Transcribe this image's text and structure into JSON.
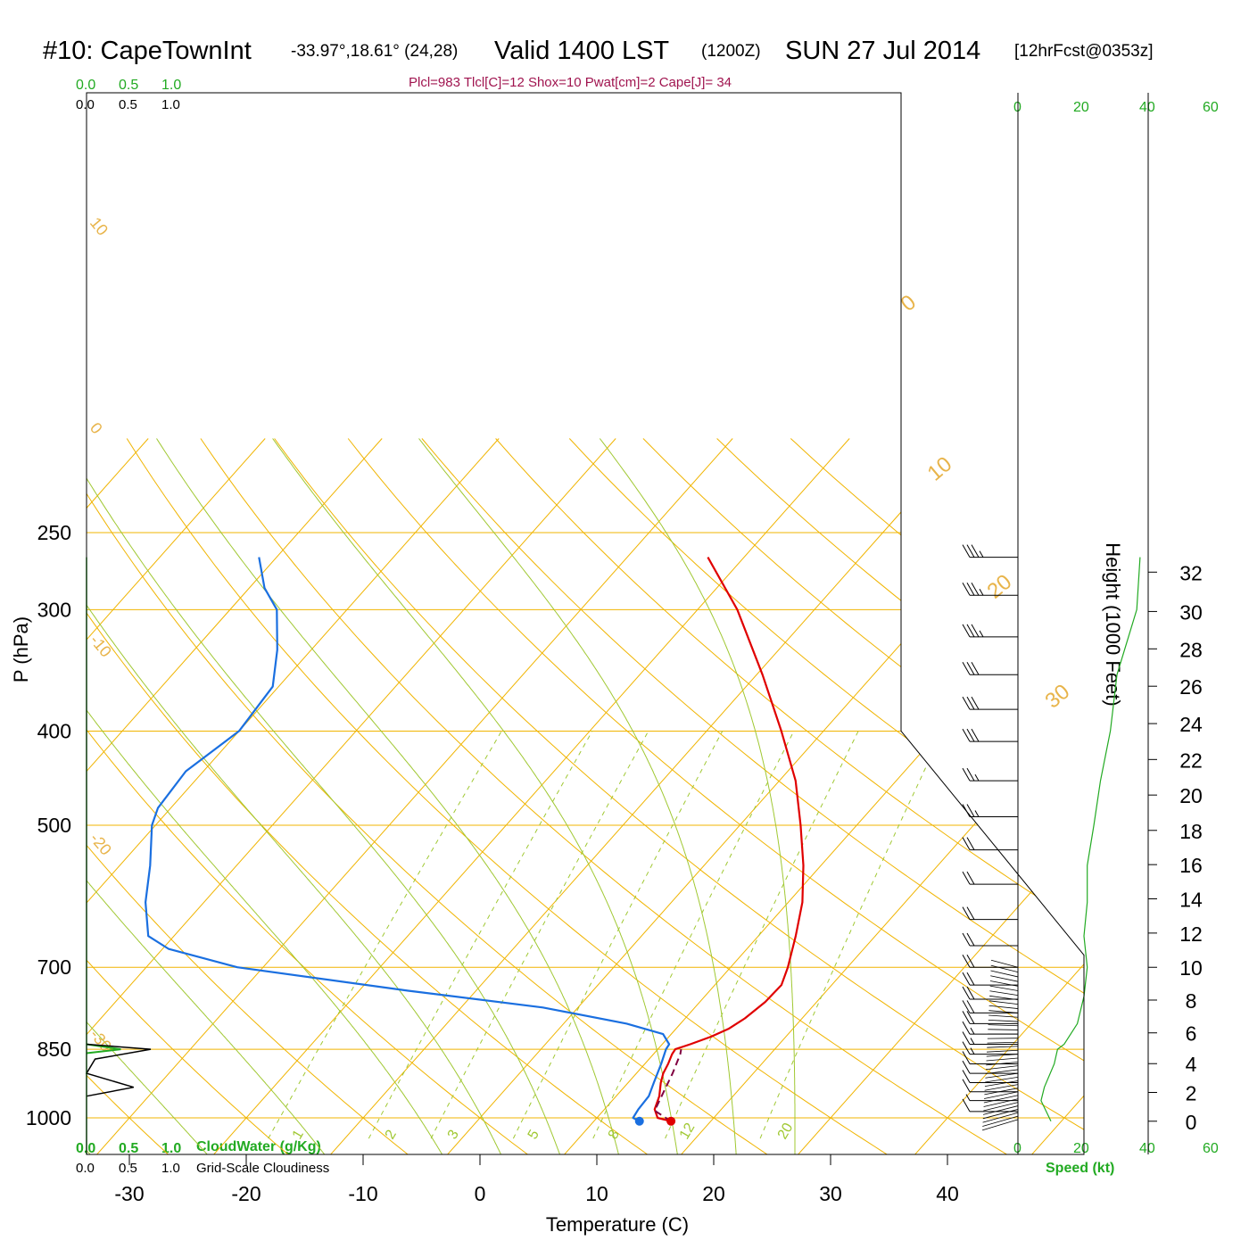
{
  "title": {
    "station": "#10: CapeTownInt",
    "coords": "-33.97°,18.61° (24,28)",
    "valid": "Valid 1400 LST",
    "utc": "(1200Z)",
    "date": "SUN 27 Jul 2014",
    "forecast": "[12hrFcst@0353z]"
  },
  "params_line": "Plcl=983 Tlcl[C]=12 Shox=10 Pwat[cm]=2 Cape[J]= 34",
  "colors": {
    "isotherm": "#f0b400",
    "dry_adiabat": "#f0b400",
    "moist_adiabat": "#a0c832",
    "mixing_ratio": "#a0c832",
    "temperature": "#e00000",
    "dewpoint": "#1a6fe0",
    "parcel": "#800040",
    "cloud": "#22aa22",
    "height_line": "#000000"
  },
  "labels": {
    "top_green_scale": [
      "0.0",
      "0.5",
      "1.0"
    ],
    "top_black_scale": [
      "0.0",
      "0.5",
      "1.0"
    ],
    "bottom_green_scale": [
      "0.0",
      "0.5",
      "1.0"
    ],
    "bottom_black_scale": [
      "0.0",
      "0.5",
      "1.0"
    ],
    "cloudwater": "CloudWater (g/Kg)",
    "cloudiness": "Grid-Scale Cloudiness",
    "speed_ticks": [
      "0",
      "20",
      "40",
      "60"
    ],
    "speed_label": "Speed (kt)"
  },
  "chart_data": {
    "type": "skew-t log-p sounding",
    "xlabel": "Temperature (C)",
    "ylabel": "P (hPa)",
    "y2label": "Height (1000 Feet)",
    "pressure_ticks": [
      250,
      300,
      400,
      500,
      700,
      850,
      1000
    ],
    "temperature_ticks": [
      -30,
      -20,
      -10,
      0,
      10,
      20,
      30,
      40
    ],
    "height_ticks_kft": [
      0,
      2,
      4,
      6,
      8,
      10,
      12,
      14,
      16,
      18,
      20,
      22,
      24,
      26,
      28,
      30,
      32
    ],
    "y_log_scale": true,
    "isotherm_labels": [
      "10",
      "0",
      "-10",
      "-20",
      "-30"
    ],
    "right_isotherm_labels": [
      "0",
      "10",
      "20",
      "30"
    ],
    "mixing_ratio_labels": [
      "1",
      "2",
      "3",
      "5",
      "8",
      "12",
      "20"
    ],
    "mixing_ratios_gkg": [
      1,
      2,
      3,
      5,
      8,
      12,
      20
    ],
    "temperature_profile": [
      {
        "p": 1008,
        "t": 16.6
      },
      {
        "p": 1000,
        "t": 15.2
      },
      {
        "p": 980,
        "t": 14.3
      },
      {
        "p": 950,
        "t": 13.7
      },
      {
        "p": 920,
        "t": 12.8
      },
      {
        "p": 900,
        "t": 12.3
      },
      {
        "p": 880,
        "t": 12.0
      },
      {
        "p": 860,
        "t": 11.6
      },
      {
        "p": 850,
        "t": 11.5
      },
      {
        "p": 840,
        "t": 12.4
      },
      {
        "p": 825,
        "t": 13.6
      },
      {
        "p": 810,
        "t": 14.5
      },
      {
        "p": 790,
        "t": 15.1
      },
      {
        "p": 760,
        "t": 15.6
      },
      {
        "p": 730,
        "t": 15.7
      },
      {
        "p": 700,
        "t": 14.9
      },
      {
        "p": 650,
        "t": 13.2
      },
      {
        "p": 600,
        "t": 11.2
      },
      {
        "p": 550,
        "t": 8.5
      },
      {
        "p": 500,
        "t": 5.2
      },
      {
        "p": 450,
        "t": 1.4
      },
      {
        "p": 400,
        "t": -3.6
      },
      {
        "p": 350,
        "t": -9.5
      },
      {
        "p": 300,
        "t": -16.6
      },
      {
        "p": 265,
        "t": -23.1
      }
    ],
    "dewpoint_profile": [
      {
        "p": 1008,
        "t": 13.9
      },
      {
        "p": 1000,
        "t": 13.1
      },
      {
        "p": 980,
        "t": 12.9
      },
      {
        "p": 950,
        "t": 12.8
      },
      {
        "p": 920,
        "t": 12.2
      },
      {
        "p": 880,
        "t": 11.4
      },
      {
        "p": 850,
        "t": 10.7
      },
      {
        "p": 840,
        "t": 10.6
      },
      {
        "p": 820,
        "t": 9.3
      },
      {
        "p": 800,
        "t": 5.4
      },
      {
        "p": 770,
        "t": -3.0
      },
      {
        "p": 740,
        "t": -15.8
      },
      {
        "p": 700,
        "t": -32.2
      },
      {
        "p": 670,
        "t": -39.5
      },
      {
        "p": 650,
        "t": -42.2
      },
      {
        "p": 600,
        "t": -45.0
      },
      {
        "p": 550,
        "t": -47.4
      },
      {
        "p": 500,
        "t": -50.3
      },
      {
        "p": 480,
        "t": -51.1
      },
      {
        "p": 440,
        "t": -51.5
      },
      {
        "p": 400,
        "t": -50.0
      },
      {
        "p": 360,
        "t": -50.5
      },
      {
        "p": 330,
        "t": -52.9
      },
      {
        "p": 300,
        "t": -56.0
      },
      {
        "p": 285,
        "t": -58.7
      },
      {
        "p": 265,
        "t": -61.5
      }
    ],
    "parcel_profile": [
      {
        "p": 1008,
        "t": 16.6
      },
      {
        "p": 983,
        "t": 14.4
      },
      {
        "p": 950,
        "t": 13.9
      },
      {
        "p": 900,
        "t": 13.1
      },
      {
        "p": 860,
        "t": 12.3
      },
      {
        "p": 850,
        "t": 12.0
      }
    ],
    "surface_points": {
      "t": 16.6,
      "td": 13.9,
      "p": 1008
    },
    "height_profile": [
      {
        "p": 1008,
        "kft": 0
      },
      {
        "p": 850,
        "kft": 5
      },
      {
        "p": 700,
        "kft": 10
      },
      {
        "p": 500,
        "kft": 18.3
      },
      {
        "p": 400,
        "kft": 23.6
      },
      {
        "p": 300,
        "kft": 30.1
      },
      {
        "p": 250,
        "kft": 34
      }
    ],
    "wind_speed_profile_kt": [
      {
        "p": 1008,
        "spd": 10
      },
      {
        "p": 960,
        "spd": 7
      },
      {
        "p": 930,
        "spd": 8
      },
      {
        "p": 880,
        "spd": 11
      },
      {
        "p": 850,
        "spd": 12
      },
      {
        "p": 840,
        "spd": 14
      },
      {
        "p": 800,
        "spd": 18
      },
      {
        "p": 750,
        "spd": 20
      },
      {
        "p": 700,
        "spd": 21
      },
      {
        "p": 650,
        "spd": 20
      },
      {
        "p": 600,
        "spd": 21
      },
      {
        "p": 550,
        "spd": 21
      },
      {
        "p": 500,
        "spd": 23
      },
      {
        "p": 450,
        "spd": 25
      },
      {
        "p": 400,
        "spd": 28
      },
      {
        "p": 350,
        "spd": 30
      },
      {
        "p": 300,
        "spd": 36
      },
      {
        "p": 265,
        "spd": 37
      }
    ],
    "wind_barbs": [
      {
        "p": 265,
        "spd": 35
      },
      {
        "p": 290,
        "spd": 35
      },
      {
        "p": 320,
        "spd": 35
      },
      {
        "p": 350,
        "spd": 30
      },
      {
        "p": 380,
        "spd": 30
      },
      {
        "p": 410,
        "spd": 30
      },
      {
        "p": 450,
        "spd": 25
      },
      {
        "p": 490,
        "spd": 25
      },
      {
        "p": 530,
        "spd": 20
      },
      {
        "p": 575,
        "spd": 20
      },
      {
        "p": 625,
        "spd": 20
      },
      {
        "p": 665,
        "spd": 20
      },
      {
        "p": 700,
        "spd": 20
      },
      {
        "p": 730,
        "spd": 20
      },
      {
        "p": 755,
        "spd": 20
      },
      {
        "p": 780,
        "spd": 20
      },
      {
        "p": 800,
        "spd": 20
      },
      {
        "p": 820,
        "spd": 15
      },
      {
        "p": 840,
        "spd": 15
      },
      {
        "p": 860,
        "spd": 15
      },
      {
        "p": 880,
        "spd": 10
      },
      {
        "p": 900,
        "spd": 10
      },
      {
        "p": 920,
        "spd": 10
      },
      {
        "p": 940,
        "spd": 10
      },
      {
        "p": 960,
        "spd": 5
      },
      {
        "p": 985,
        "spd": 10
      }
    ],
    "cloudwater_profile": [
      {
        "p": 840,
        "v": 0
      },
      {
        "p": 850,
        "v": 0.4
      },
      {
        "p": 858,
        "v": 0
      }
    ],
    "cloudiness_profile": [
      {
        "p": 840,
        "v": 0
      },
      {
        "p": 850,
        "v": 0.75
      },
      {
        "p": 870,
        "v": 0.1
      },
      {
        "p": 900,
        "v": 0
      },
      {
        "p": 930,
        "v": 0.55
      },
      {
        "p": 950,
        "v": 0
      }
    ]
  }
}
